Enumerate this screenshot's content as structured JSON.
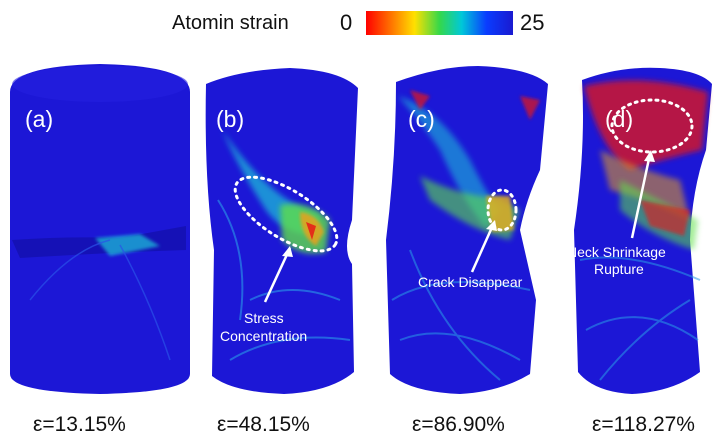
{
  "legend": {
    "title": "Atomin strain",
    "min": "0",
    "max": "25",
    "colors": [
      "#ff0000",
      "#ff7a00",
      "#ffe000",
      "#35d84a",
      "#00c8d8",
      "#0a3cff",
      "#1a1ad0"
    ]
  },
  "panels": [
    {
      "label": "(a)",
      "strain": "ε=13.15%"
    },
    {
      "label": "(b)",
      "strain": "ε=48.15%",
      "annotation": [
        "Stress",
        "Concentration"
      ]
    },
    {
      "label": "(c)",
      "strain": "ε=86.90%",
      "annotation": [
        "Crack Disappear"
      ]
    },
    {
      "label": "(d)",
      "strain": "ε=118.27%",
      "annotation": [
        "Neck Shrinkage",
        "Rupture"
      ]
    }
  ],
  "colors": {
    "specimen": "#1c17d6",
    "specimen_dark": "#1210a8",
    "cyan": "#1fb9d8",
    "green": "#5ee04a",
    "yellow": "#f2e23a",
    "red": "#e81818"
  }
}
